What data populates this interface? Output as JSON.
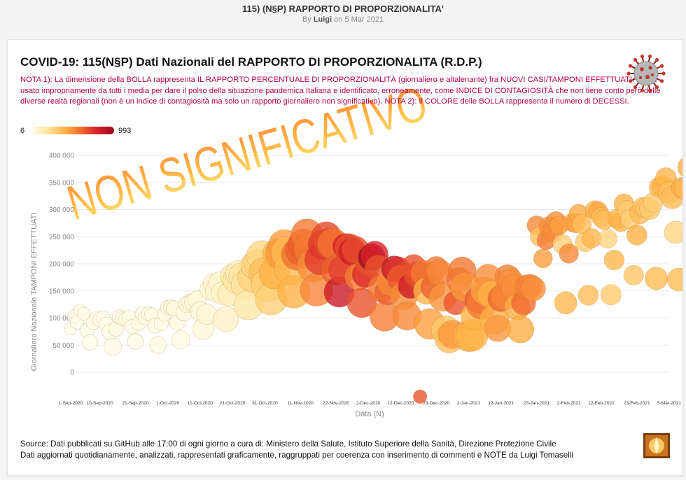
{
  "post": {
    "title": "115) (N§P) RAPPORTO DI PROPORZIONALITA'",
    "by_prefix": "By ",
    "author": "Luigi",
    "date": " on 5 Mar 2021"
  },
  "chart_data": {
    "type": "scatter",
    "title": "COVID-19: 115(N§P) Dati Nazionali del RAPPORTO DI PROPORZIONALITA (R.D.P.)",
    "note": "NOTA 1): La dimensione della BOLLA rappresenta IL RAPPORTO PERCENTUALE DI PROPORZIONALITÀ (giornaliero e altalenante) fra NUOVI CASI/TAMPONI EFFETTUATI: Indice usato impropriamente da tutti i media per dare il polso della situazione pandemica Italiana e identificato, erroneamente, come INDICE DI CONTAGIOSITÀ che non tiene conto però delle diverse realtà regionali (non è un indice di contagiosità ma solo un rapporto giornaliero non significativo). NOTA 2): Il COLORE delle BOLLA rappresenta il numero di DECESSI.",
    "watermark": "NON SIGNIFICATIVO",
    "color_legend": {
      "min": "6",
      "max": "993"
    },
    "ylabel": "Giornaliero Nazionale TAMPONI EFFETTUATI",
    "xlabel": "Data (N)",
    "ylim": [
      0,
      400000
    ],
    "yticks": [
      "0",
      "50 000",
      "100 000",
      "150 000",
      "200 000",
      "250 000",
      "300 000",
      "350 000",
      "400 000"
    ],
    "xlim": [
      "2020-09-01",
      "2021-03-05"
    ],
    "xticks": [
      "1-Sep-2020",
      "10-Sep-2020",
      "21-Sep-2020",
      "1-Oct-2020",
      "11-Oct-2020",
      "21-Oct-2020",
      "31-Oct-2020",
      "11-Nov-2020",
      "22-Nov-2020",
      "2-Dec-2020",
      "12-Dec-2020",
      "23-Dec-2020",
      "2-Jan-2021",
      "12-Jan-2021",
      "23-Jan-2021",
      "2-Feb-2021",
      "12-Feb-2021",
      "23-Feb-2021",
      "5-Mar-2021"
    ],
    "grid": true,
    "colors": {
      "low": "#fffde8",
      "mid": "#ffb347",
      "high": "#d81e2a",
      "top": "#9d0a1e"
    },
    "points": [
      [
        "2020-09-01",
        80000,
        1,
        6
      ],
      [
        "2020-09-02",
        103000,
        1.5,
        8
      ],
      [
        "2020-09-03",
        92000,
        1.6,
        10
      ],
      [
        "2020-09-04",
        113000,
        1.4,
        9
      ],
      [
        "2020-09-05",
        108000,
        1.3,
        7
      ],
      [
        "2020-09-06",
        77000,
        1.8,
        7
      ],
      [
        "2020-09-07",
        55000,
        2.4,
        10
      ],
      [
        "2020-09-08",
        92000,
        1.9,
        14
      ],
      [
        "2020-09-09",
        100000,
        1.7,
        10
      ],
      [
        "2020-09-10",
        97000,
        1.9,
        12
      ],
      [
        "2020-09-11",
        100000,
        1.8,
        12
      ],
      [
        "2020-09-12",
        88000,
        2.1,
        9
      ],
      [
        "2020-09-13",
        74000,
        2.3,
        10
      ],
      [
        "2020-09-14",
        47000,
        3.3,
        15
      ],
      [
        "2020-09-15",
        80000,
        2.2,
        20
      ],
      [
        "2020-09-16",
        102000,
        1.8,
        14
      ],
      [
        "2020-09-17",
        99000,
        1.9,
        17
      ],
      [
        "2020-09-18",
        98000,
        1.8,
        15
      ],
      [
        "2020-09-19",
        101000,
        1.8,
        14
      ],
      [
        "2020-09-20",
        84000,
        1.9,
        10
      ],
      [
        "2020-09-21",
        57000,
        2.6,
        13
      ],
      [
        "2020-09-22",
        90000,
        1.8,
        20
      ],
      [
        "2020-09-23",
        108000,
        1.6,
        20
      ],
      [
        "2020-09-24",
        100000,
        1.7,
        19
      ],
      [
        "2020-09-25",
        108000,
        1.7,
        17
      ],
      [
        "2020-09-26",
        106000,
        1.7,
        19
      ],
      [
        "2020-09-27",
        86000,
        2.1,
        17
      ],
      [
        "2020-09-28",
        50000,
        3.0,
        17
      ],
      [
        "2020-09-29",
        90000,
        1.9,
        17
      ],
      [
        "2020-09-30",
        107000,
        1.8,
        24
      ],
      [
        "2020-10-01",
        119000,
        2.0,
        23
      ],
      [
        "2020-10-02",
        120000,
        2.1,
        27
      ],
      [
        "2020-10-03",
        118000,
        2.4,
        23
      ],
      [
        "2020-10-04",
        92000,
        2.4,
        27
      ],
      [
        "2020-10-05",
        60000,
        3.8,
        18
      ],
      [
        "2020-10-06",
        110000,
        2.9,
        28
      ],
      [
        "2020-10-07",
        125000,
        3.0,
        31
      ],
      [
        "2020-10-08",
        128000,
        3.4,
        28
      ],
      [
        "2020-10-09",
        130000,
        3.8,
        28
      ],
      [
        "2020-10-10",
        133000,
        4.1,
        29
      ],
      [
        "2020-10-11",
        112000,
        4.8,
        26
      ],
      [
        "2020-10-12",
        80000,
        5.7,
        39
      ],
      [
        "2020-10-13",
        107000,
        5.4,
        41
      ],
      [
        "2020-10-14",
        152000,
        4.8,
        43
      ],
      [
        "2020-10-15",
        163000,
        5.2,
        54
      ],
      [
        "2020-10-16",
        150000,
        6.7,
        47
      ],
      [
        "2020-10-17",
        165000,
        6.2,
        47
      ],
      [
        "2020-10-18",
        146000,
        7.5,
        69
      ],
      [
        "2020-10-19",
        98000,
        9.4,
        73
      ],
      [
        "2020-10-20",
        144000,
        7.7,
        89
      ],
      [
        "2020-10-21",
        177000,
        8.5,
        127
      ],
      [
        "2020-10-22",
        170000,
        9.5,
        136
      ],
      [
        "2020-10-23",
        182000,
        10.4,
        91
      ],
      [
        "2020-10-24",
        177000,
        11.1,
        151
      ],
      [
        "2020-10-25",
        161000,
        12.6,
        141
      ],
      [
        "2020-10-26",
        124000,
        14.0,
        128
      ],
      [
        "2020-10-27",
        174000,
        12.6,
        221
      ],
      [
        "2020-10-28",
        198000,
        12.4,
        205
      ],
      [
        "2020-10-29",
        201000,
        13.1,
        217
      ],
      [
        "2020-10-30",
        215000,
        14.5,
        199
      ],
      [
        "2020-10-31",
        183000,
        17.0,
        297
      ],
      [
        "2020-11-01",
        161000,
        18.9,
        233
      ],
      [
        "2020-11-02",
        135000,
        16.8,
        236
      ],
      [
        "2020-11-03",
        182000,
        15.7,
        353
      ],
      [
        "2020-11-04",
        219000,
        14.0,
        352
      ],
      [
        "2020-11-05",
        219000,
        15.1,
        445
      ],
      [
        "2020-11-06",
        234000,
        16.3,
        425
      ],
      [
        "2020-11-07",
        221000,
        17.8,
        331
      ],
      [
        "2020-11-08",
        191000,
        17.7,
        331
      ],
      [
        "2020-11-09",
        148000,
        17.5,
        356
      ],
      [
        "2020-11-10",
        217000,
        16.1,
        580
      ],
      [
        "2020-11-11",
        225000,
        14.6,
        623
      ],
      [
        "2020-11-12",
        235000,
        16.7,
        636
      ],
      [
        "2020-11-13",
        254000,
        16.0,
        550
      ],
      [
        "2020-11-14",
        227000,
        17.3,
        546
      ],
      [
        "2020-11-15",
        196000,
        17.2,
        484
      ],
      [
        "2020-11-16",
        152000,
        18.0,
        504
      ],
      [
        "2020-11-17",
        208000,
        15.2,
        731
      ],
      [
        "2020-11-18",
        235000,
        14.7,
        753
      ],
      [
        "2020-11-19",
        250000,
        14.4,
        699
      ],
      [
        "2020-11-20",
        238000,
        15.3,
        692
      ],
      [
        "2020-11-21",
        237000,
        15.4,
        562
      ],
      [
        "2020-11-22",
        188000,
        14.4,
        630
      ],
      [
        "2020-11-23",
        148000,
        15.0,
        853
      ],
      [
        "2020-11-24",
        189000,
        12.4,
        722
      ],
      [
        "2020-11-25",
        232000,
        9.9,
        822
      ],
      [
        "2020-11-26",
        230000,
        12.2,
        686
      ],
      [
        "2020-11-27",
        222000,
        12.2,
        827
      ],
      [
        "2020-11-28",
        226000,
        11.1,
        686
      ],
      [
        "2020-11-29",
        176000,
        11.6,
        541
      ],
      [
        "2020-11-30",
        128000,
        14.0,
        672
      ],
      [
        "2020-12-01",
        180000,
        10.0,
        785
      ],
      [
        "2020-12-02",
        202000,
        9.9,
        684
      ],
      [
        "2020-12-03",
        212000,
        11.2,
        993
      ],
      [
        "2020-12-04",
        217000,
        11.1,
        814
      ],
      [
        "2020-12-05",
        192000,
        10.0,
        662
      ],
      [
        "2020-12-06",
        154000,
        11.4,
        564
      ],
      [
        "2020-12-07",
        103000,
        14.0,
        528
      ],
      [
        "2020-12-08",
        148000,
        10.0,
        634
      ],
      [
        "2020-12-09",
        166000,
        12.0,
        499
      ],
      [
        "2020-12-10",
        191000,
        10.0,
        887
      ],
      [
        "2020-12-11",
        190000,
        9.5,
        761
      ],
      [
        "2020-12-12",
        173000,
        11.1,
        649
      ],
      [
        "2020-12-13",
        141000,
        12.0,
        484
      ],
      [
        "2020-12-14",
        104000,
        12.8,
        491
      ],
      [
        "2020-12-15",
        159000,
        9.0,
        846
      ],
      [
        "2020-12-16",
        195000,
        8.5,
        680
      ],
      [
        "2020-12-17",
        180000,
        10.0,
        683
      ],
      [
        "2020-12-18",
        181000,
        9.2,
        674
      ],
      [
        "2020-12-19",
        183000,
        9.6,
        553
      ],
      [
        "2020-12-20",
        150000,
        10.6,
        352
      ],
      [
        "2020-12-21",
        89000,
        15.3,
        415
      ],
      [
        "2020-12-22",
        157000,
        8.9,
        628
      ],
      [
        "2020-12-23",
        192000,
        7.8,
        553
      ],
      [
        "2020-12-24",
        184000,
        10.0,
        505
      ],
      [
        "2020-12-25",
        138000,
        12.0,
        459
      ],
      [
        "2020-12-26",
        77000,
        13.5,
        261
      ],
      [
        "2020-12-27",
        62000,
        13.0,
        305
      ],
      [
        "2020-12-28",
        70000,
        12.6,
        445
      ],
      [
        "2020-12-29",
        128000,
        8.3,
        659
      ],
      [
        "2020-12-30",
        170000,
        9.6,
        575
      ],
      [
        "2020-12-31",
        187000,
        12.1,
        555
      ],
      [
        "2021-01-01",
        157000,
        14.1,
        462
      ],
      [
        "2021-01-02",
        67000,
        16.0,
        364
      ],
      [
        "2021-01-03",
        68000,
        16.9,
        347
      ],
      [
        "2021-01-04",
        104000,
        12.7,
        348
      ],
      [
        "2021-01-05",
        134000,
        11.4,
        649
      ],
      [
        "2021-01-06",
        125000,
        14.5,
        548
      ],
      [
        "2021-01-07",
        150000,
        12.2,
        414
      ],
      [
        "2021-01-08",
        175000,
        10.4,
        483
      ],
      [
        "2021-01-09",
        143000,
        12.1,
        361
      ],
      [
        "2021-01-10",
        97000,
        13.9,
        361
      ],
      [
        "2021-01-11",
        81000,
        10.7,
        448
      ],
      [
        "2021-01-12",
        136000,
        10.5,
        616
      ],
      [
        "2021-01-13",
        140000,
        11.0,
        507
      ],
      [
        "2021-01-14",
        175000,
        9.5,
        522
      ],
      [
        "2021-01-15",
        168000,
        9.5,
        477
      ],
      [
        "2021-01-16",
        157000,
        10.0,
        475
      ],
      [
        "2021-01-17",
        120000,
        9.8,
        377
      ],
      [
        "2021-01-18",
        79000,
        11.2,
        377
      ],
      [
        "2021-01-19",
        128000,
        8.5,
        603
      ],
      [
        "2021-01-20",
        157000,
        8.8,
        524
      ],
      [
        "2021-01-21",
        158000,
        8.7,
        521
      ],
      [
        "2021-01-22",
        154000,
        8.8,
        472
      ],
      [
        "2021-01-23",
        271000,
        4.4,
        492
      ],
      [
        "2021-01-24",
        250000,
        4.5,
        299
      ],
      [
        "2021-01-25",
        210000,
        4.3,
        420
      ],
      [
        "2021-01-26",
        243000,
        4.0,
        541
      ],
      [
        "2021-01-27",
        268000,
        5.6,
        467
      ],
      [
        "2021-01-28",
        260000,
        5.8,
        492
      ],
      [
        "2021-01-29",
        278000,
        5.1,
        477
      ],
      [
        "2021-01-30",
        271000,
        4.3,
        421
      ],
      [
        "2021-01-31",
        236000,
        4.6,
        237
      ],
      [
        "2021-02-01",
        128000,
        6.8,
        329
      ],
      [
        "2021-02-02",
        219000,
        4.6,
        499
      ],
      [
        "2021-02-03",
        276000,
        4.0,
        400
      ],
      [
        "2021-02-04",
        275000,
        4.6,
        421
      ],
      [
        "2021-02-05",
        292000,
        4.6,
        385
      ],
      [
        "2021-02-06",
        273000,
        4.5,
        307
      ],
      [
        "2021-02-07",
        240000,
        4.6,
        266
      ],
      [
        "2021-02-08",
        142000,
        5.2,
        307
      ],
      [
        "2021-02-09",
        247000,
        4.7,
        336
      ],
      [
        "2021-02-10",
        299000,
        4.3,
        336
      ],
      [
        "2021-02-11",
        297000,
        4.5,
        391
      ],
      [
        "2021-02-12",
        286000,
        4.8,
        316
      ],
      [
        "2021-02-13",
        281000,
        4.8,
        311
      ],
      [
        "2021-02-14",
        246000,
        4.2,
        221
      ],
      [
        "2021-02-15",
        143000,
        5.4,
        258
      ],
      [
        "2021-02-16",
        207000,
        5.0,
        336
      ],
      [
        "2021-02-17",
        283000,
        4.5,
        353
      ],
      [
        "2021-02-18",
        277000,
        4.5,
        347
      ],
      [
        "2021-02-19",
        311000,
        4.8,
        353
      ],
      [
        "2021-02-20",
        299000,
        4.6,
        251
      ],
      [
        "2021-02-21",
        282000,
        4.5,
        232
      ],
      [
        "2021-02-22",
        179000,
        4.9,
        274
      ],
      [
        "2021-02-23",
        253000,
        5.2,
        356
      ],
      [
        "2021-02-24",
        293000,
        5.7,
        318
      ],
      [
        "2021-02-25",
        304000,
        5.6,
        305
      ],
      [
        "2021-02-26",
        303000,
        5.7,
        280
      ],
      [
        "2021-02-27",
        301000,
        5.6,
        253
      ],
      [
        "2021-02-28",
        313000,
        4.7,
        246
      ],
      [
        "2021-03-01",
        173000,
        7.0,
        318
      ],
      [
        "2021-03-02",
        341000,
        5.5,
        343
      ],
      [
        "2021-03-03",
        343000,
        5.8,
        339
      ],
      [
        "2021-03-04",
        358000,
        5.7,
        339
      ],
      [
        "2021-03-05",
        331000,
        6.8,
        297
      ],
      [
        "2021-03-06",
        322000,
        6.9,
        307
      ],
      [
        "2021-03-07",
        258000,
        6.9,
        207
      ],
      [
        "2021-03-08",
        171000,
        7.5,
        318
      ],
      [
        "2021-03-09",
        340000,
        5.9,
        376
      ],
      [
        "2021-03-10",
        338000,
        6.1,
        332
      ],
      [
        "2021-03-11",
        378000,
        6.4,
        373
      ],
      [
        "2020-12-18",
        -45000,
        1.6,
        650
      ]
    ]
  },
  "source": {
    "line1": "Source: Dati pubblicati su GitHub alle 17:00 di ogni giorno a cura di: Ministero della Salute, Istituto Superiore della Sanità, Direzione Protezione Civile",
    "line2": "Dati aggiornati quotidianamente, analizzati, rappresentati graficamente, raggruppati per coerenza con inserimento di commenti e NOTE da Luigi Tomaselli"
  }
}
